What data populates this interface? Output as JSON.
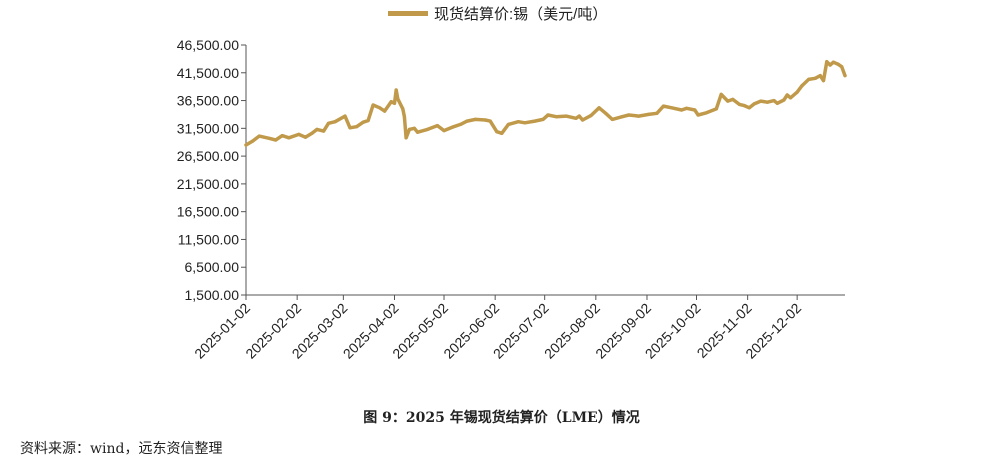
{
  "chart_data": {
    "type": "line",
    "legend": "现货结算价:锡（美元/吨）",
    "legend_position": "top-center",
    "line_color": "#C09A4A",
    "grid": false,
    "ylim": [
      1500,
      46500
    ],
    "yticks": [
      "46,500.00",
      "41,500.00",
      "36,500.00",
      "31,500.00",
      "26,500.00",
      "21,500.00",
      "16,500.00",
      "11,500.00",
      "6,500.00",
      "1,500.00"
    ],
    "ytick_values": [
      46500,
      41500,
      36500,
      31500,
      26500,
      21500,
      16500,
      11500,
      6500,
      1500
    ],
    "xlim": [
      "2025-01-02",
      "2025-12-31"
    ],
    "xticks": [
      "2025-01-02",
      "2025-02-02",
      "2025-03-02",
      "2025-04-02",
      "2025-05-02",
      "2025-06-02",
      "2025-07-02",
      "2025-08-02",
      "2025-09-02",
      "2025-10-02",
      "2025-11-02",
      "2025-12-02"
    ],
    "series": [
      {
        "name": "现货结算价:锡（美元/吨）",
        "points": [
          [
            "2025-01-02",
            28500
          ],
          [
            "2025-01-06",
            29200
          ],
          [
            "2025-01-10",
            30100
          ],
          [
            "2025-01-16",
            29700
          ],
          [
            "2025-01-20",
            29400
          ],
          [
            "2025-01-24",
            30200
          ],
          [
            "2025-01-28",
            29800
          ],
          [
            "2025-02-03",
            30400
          ],
          [
            "2025-02-07",
            29900
          ],
          [
            "2025-02-11",
            30600
          ],
          [
            "2025-02-14",
            31300
          ],
          [
            "2025-02-18",
            31000
          ],
          [
            "2025-02-21",
            32400
          ],
          [
            "2025-02-25",
            32700
          ],
          [
            "2025-03-03",
            33700
          ],
          [
            "2025-03-06",
            31600
          ],
          [
            "2025-03-10",
            31800
          ],
          [
            "2025-03-14",
            32600
          ],
          [
            "2025-03-17",
            32900
          ],
          [
            "2025-03-20",
            35700
          ],
          [
            "2025-03-24",
            35200
          ],
          [
            "2025-03-27",
            34600
          ],
          [
            "2025-03-31",
            36300
          ],
          [
            "2025-04-02",
            36000
          ],
          [
            "2025-04-03",
            38400
          ],
          [
            "2025-04-04",
            36800
          ],
          [
            "2025-04-07",
            35000
          ],
          [
            "2025-04-08",
            33600
          ],
          [
            "2025-04-09",
            29800
          ],
          [
            "2025-04-11",
            31300
          ],
          [
            "2025-04-14",
            31500
          ],
          [
            "2025-04-16",
            30800
          ],
          [
            "2025-04-22",
            31300
          ],
          [
            "2025-04-28",
            32000
          ],
          [
            "2025-05-02",
            31100
          ],
          [
            "2025-05-07",
            31700
          ],
          [
            "2025-05-12",
            32200
          ],
          [
            "2025-05-16",
            32800
          ],
          [
            "2025-05-21",
            33100
          ],
          [
            "2025-05-27",
            33000
          ],
          [
            "2025-05-30",
            32800
          ],
          [
            "2025-06-03",
            30900
          ],
          [
            "2025-06-06",
            30600
          ],
          [
            "2025-06-10",
            32200
          ],
          [
            "2025-06-16",
            32700
          ],
          [
            "2025-06-20",
            32500
          ],
          [
            "2025-06-26",
            32800
          ],
          [
            "2025-07-01",
            33100
          ],
          [
            "2025-07-04",
            33900
          ],
          [
            "2025-07-09",
            33600
          ],
          [
            "2025-07-15",
            33700
          ],
          [
            "2025-07-21",
            33300
          ],
          [
            "2025-07-23",
            33700
          ],
          [
            "2025-07-25",
            33000
          ],
          [
            "2025-07-30",
            33800
          ],
          [
            "2025-08-04",
            35200
          ],
          [
            "2025-08-08",
            34200
          ],
          [
            "2025-08-12",
            33100
          ],
          [
            "2025-08-18",
            33600
          ],
          [
            "2025-08-22",
            33900
          ],
          [
            "2025-08-28",
            33700
          ],
          [
            "2025-09-03",
            34000
          ],
          [
            "2025-09-08",
            34200
          ],
          [
            "2025-09-12",
            35500
          ],
          [
            "2025-09-17",
            35200
          ],
          [
            "2025-09-23",
            34800
          ],
          [
            "2025-09-26",
            35100
          ],
          [
            "2025-10-01",
            34800
          ],
          [
            "2025-10-03",
            33900
          ],
          [
            "2025-10-08",
            34300
          ],
          [
            "2025-10-14",
            35000
          ],
          [
            "2025-10-17",
            37600
          ],
          [
            "2025-10-21",
            36400
          ],
          [
            "2025-10-24",
            36700
          ],
          [
            "2025-10-28",
            35800
          ],
          [
            "2025-10-31",
            35600
          ],
          [
            "2025-11-03",
            35200
          ],
          [
            "2025-11-06",
            35900
          ],
          [
            "2025-11-10",
            36400
          ],
          [
            "2025-11-14",
            36200
          ],
          [
            "2025-11-18",
            36500
          ],
          [
            "2025-11-20",
            36000
          ],
          [
            "2025-11-24",
            36600
          ],
          [
            "2025-11-26",
            37500
          ],
          [
            "2025-11-28",
            37000
          ],
          [
            "2025-12-02",
            38000
          ],
          [
            "2025-12-05",
            39200
          ],
          [
            "2025-12-09",
            40300
          ],
          [
            "2025-12-13",
            40500
          ],
          [
            "2025-12-16",
            41000
          ],
          [
            "2025-12-18",
            40100
          ],
          [
            "2025-12-20",
            43500
          ],
          [
            "2025-12-22",
            42900
          ],
          [
            "2025-12-24",
            43400
          ],
          [
            "2025-12-27",
            43000
          ],
          [
            "2025-12-29",
            42600
          ],
          [
            "2025-12-31",
            41000
          ]
        ]
      }
    ]
  },
  "caption": "图 9：2025 年锡现货结算价（LME）情况",
  "source": "资料来源：wind，远东资信整理"
}
